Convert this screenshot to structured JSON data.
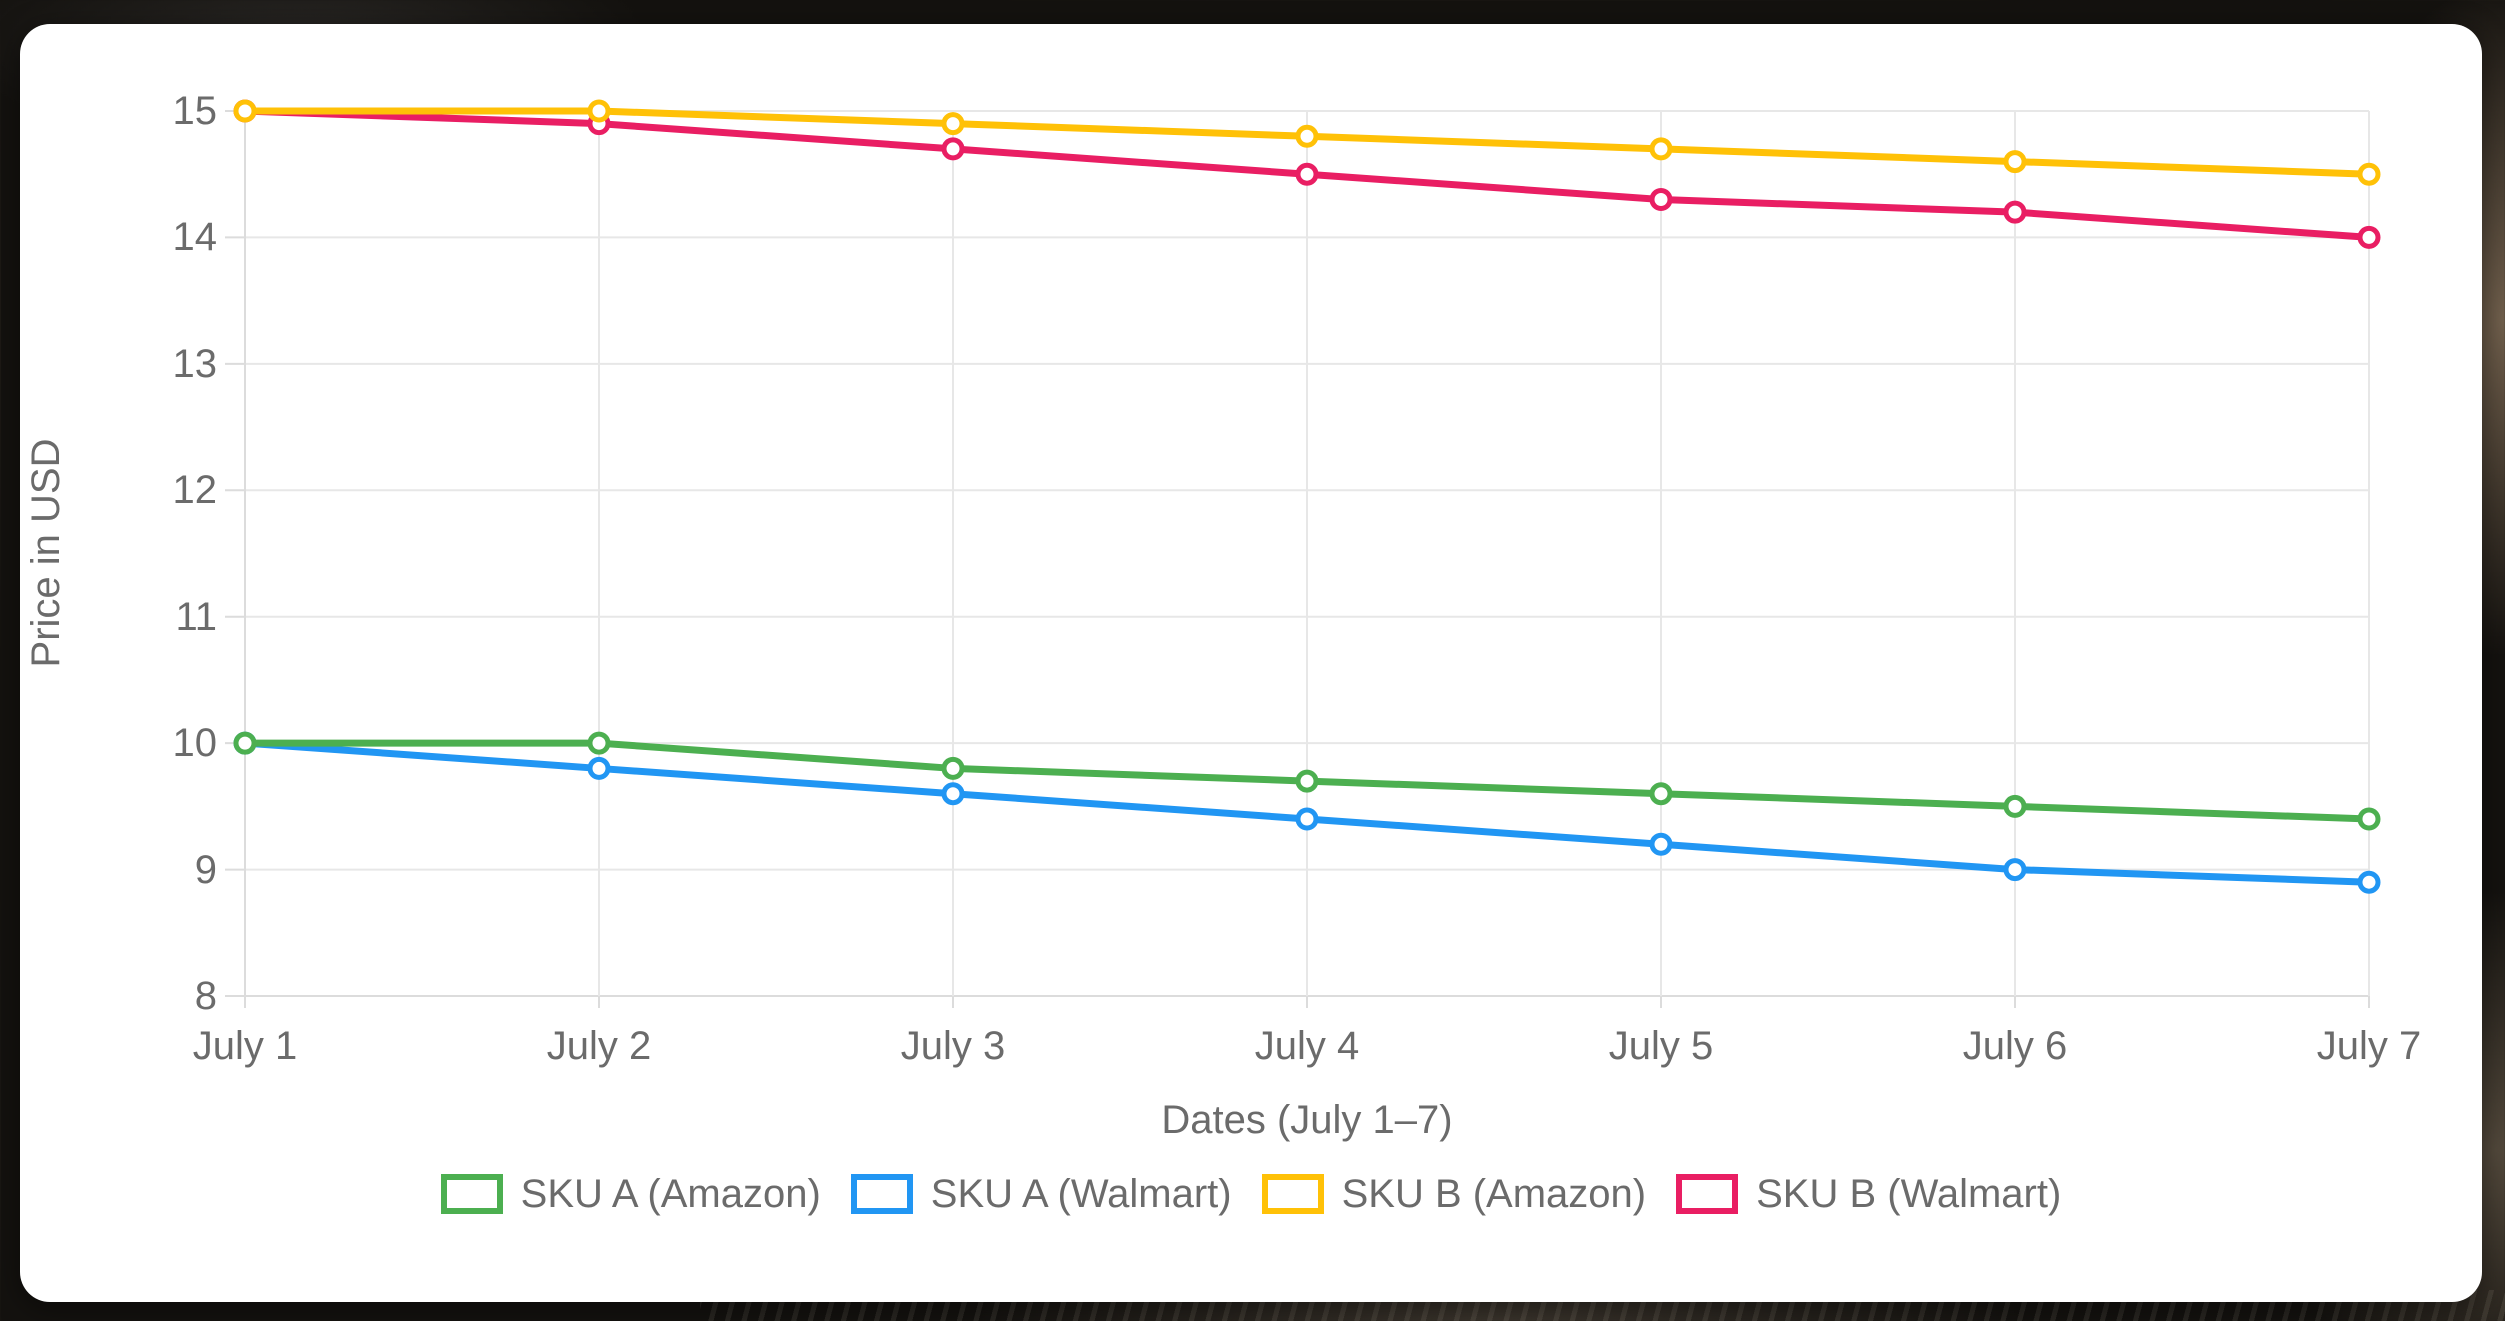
{
  "chart_data": {
    "type": "line",
    "x": [
      "July 1",
      "July 2",
      "July 3",
      "July 4",
      "July 5",
      "July 6",
      "July 7"
    ],
    "series": [
      {
        "name": "SKU A (Amazon)",
        "color": "#4CAF50",
        "values": [
          10.0,
          10.0,
          9.8,
          9.7,
          9.6,
          9.5,
          9.4
        ]
      },
      {
        "name": "SKU A (Walmart)",
        "color": "#2196F3",
        "values": [
          10.0,
          9.8,
          9.6,
          9.4,
          9.2,
          9.0,
          8.9
        ]
      },
      {
        "name": "SKU B (Amazon)",
        "color": "#FFC107",
        "values": [
          15.0,
          15.0,
          14.9,
          14.8,
          14.7,
          14.6,
          14.5
        ]
      },
      {
        "name": "SKU B (Walmart)",
        "color": "#E91E63",
        "values": [
          15.0,
          14.9,
          14.7,
          14.5,
          14.3,
          14.2,
          14.0
        ]
      }
    ],
    "xlabel": "Dates (July 1–7)",
    "ylabel": "Price in USD",
    "ylim": [
      8,
      15
    ],
    "y_ticks": [
      15,
      14,
      13,
      12,
      11,
      10,
      9,
      8
    ],
    "y_tick_labels": [
      "15",
      "14",
      "13",
      "12",
      "11",
      "10",
      "9",
      "8"
    ],
    "grid": true,
    "legend_position": "bottom",
    "grid_color": "#e7e7e7",
    "axis_line_color": "#dcdcdc",
    "tick_text_color": "#6b6b6b",
    "point_fill": "#ffffff"
  }
}
